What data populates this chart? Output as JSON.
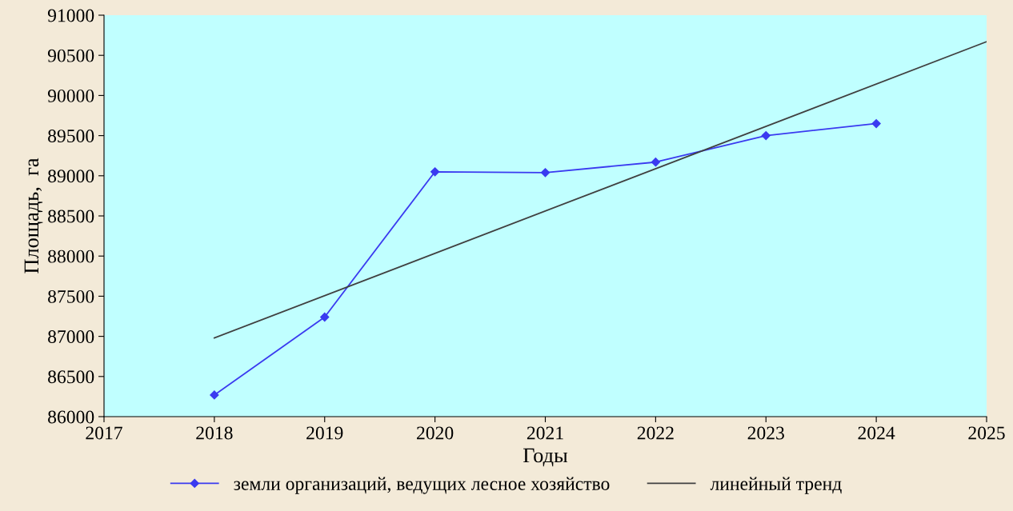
{
  "chart_data": {
    "type": "line",
    "xlabel": "Годы",
    "ylabel": "Площадь,  га",
    "series": [
      {
        "name": "земли организаций, ведущих лесное хозяйство",
        "color": "#3a3af0",
        "x": [
          2018,
          2019,
          2020,
          2021,
          2022,
          2023,
          2024
        ],
        "values": [
          86270,
          87240,
          89050,
          89040,
          89170,
          89500,
          89650
        ],
        "marker": "diamond"
      },
      {
        "name": "линейный тренд",
        "color": "#404040",
        "type": "line",
        "x": [
          2018,
          2025
        ],
        "values": [
          86980,
          90670
        ],
        "marker": "none"
      }
    ],
    "xlim": [
      2017,
      2025
    ],
    "xticks": [
      2017,
      2018,
      2019,
      2020,
      2021,
      2022,
      2023,
      2024,
      2025
    ],
    "ylim": [
      86000,
      91000
    ],
    "yticks": [
      86000,
      86500,
      87000,
      87500,
      88000,
      88500,
      89000,
      89500,
      90000,
      90500,
      91000
    ],
    "grid": false,
    "legend": "bottom",
    "line_style": "solid"
  }
}
